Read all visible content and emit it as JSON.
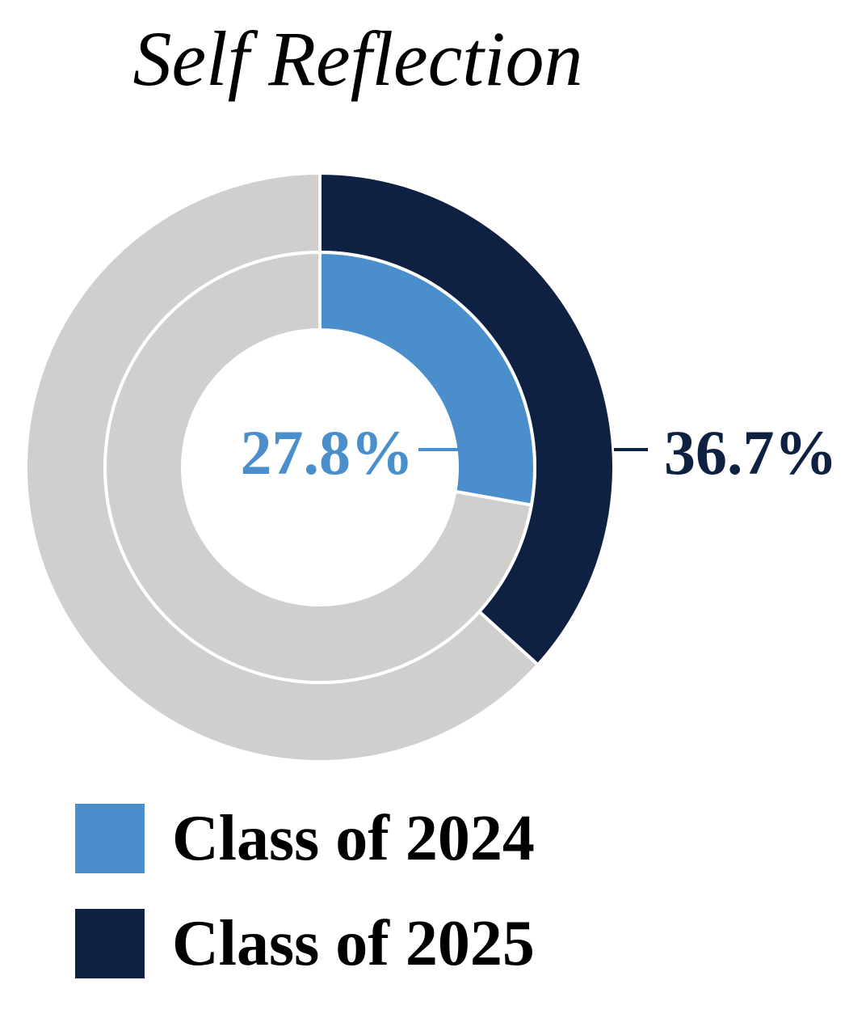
{
  "chart_data": {
    "type": "pie",
    "variant": "nested-donut",
    "title": "Self Reflection",
    "series": [
      {
        "name": "Class of 2024",
        "value": 27.8,
        "label": "27.8%",
        "color": "#4a8ecb",
        "ring": "inner"
      },
      {
        "name": "Class of 2025",
        "value": 36.7,
        "label": "36.7%",
        "color": "#0e2142",
        "ring": "outer"
      }
    ],
    "remainder_color": "#d0cfcd",
    "legend_position": "bottom-left"
  }
}
